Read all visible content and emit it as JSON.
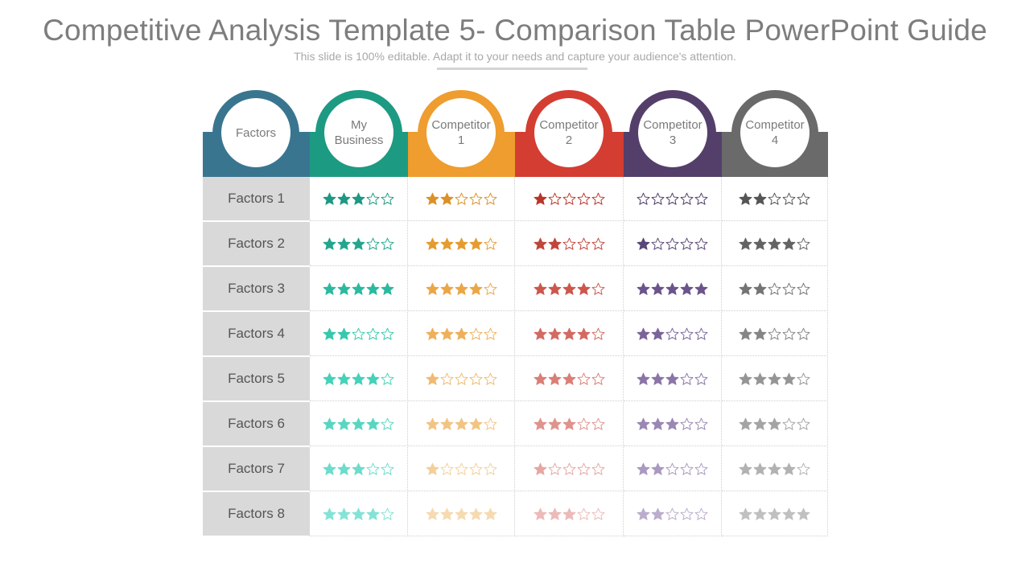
{
  "title": "Competitive Analysis Template 5- Comparison Table PowerPoint Guide",
  "subtitle": "This slide is 100% editable. Adapt it to your needs and capture your audience's attention.",
  "columns": [
    {
      "header": "Factors",
      "color": "#3a7590"
    },
    {
      "header": "My\nBusiness",
      "color": "#1d9a82"
    },
    {
      "header": "Competitor\n1",
      "color": "#ee9d2e"
    },
    {
      "header": "Competitor\n2",
      "color": "#d43d32"
    },
    {
      "header": "Competitor\n3",
      "color": "#533f6a"
    },
    {
      "header": "Competitor\n4",
      "color": "#6a6a6a"
    }
  ],
  "row_labels": [
    "Factors 1",
    "Factors 2",
    "Factors 3",
    "Factors 4",
    "Factors 5",
    "Factors 6",
    "Factors 7",
    "Factors 8"
  ],
  "max_stars": 5,
  "ratings": {
    "my_business": [
      3,
      3,
      5,
      2,
      4,
      4,
      3,
      4
    ],
    "competitor_1": [
      2,
      4,
      4,
      3,
      1,
      4,
      1,
      5
    ],
    "competitor_2": [
      1,
      2,
      4,
      4,
      3,
      3,
      1,
      3
    ],
    "competitor_3": [
      0,
      1,
      5,
      2,
      3,
      3,
      2,
      2
    ],
    "competitor_4": [
      2,
      4,
      2,
      2,
      4,
      3,
      4,
      5
    ]
  },
  "star_palettes": {
    "my_business": [
      "#1e9882",
      "#23a58e",
      "#2bb9a0",
      "#37c8ae",
      "#46d1b9",
      "#58d6c1",
      "#6cdccb",
      "#84e3d6"
    ],
    "competitor_1": [
      "#dc9126",
      "#e49c30",
      "#eba646",
      "#eeb05b",
      "#f0ba70",
      "#f2c483",
      "#f4cf99",
      "#f6dab0"
    ],
    "competitor_2": [
      "#b83628",
      "#c1453a",
      "#cc574d",
      "#d36a62",
      "#da7e78",
      "#e0928d",
      "#e6a6a2",
      "#ecbab7"
    ],
    "competitor_3": [
      "#4c3b66",
      "#5a4678",
      "#6a548b",
      "#7a6499",
      "#8a75a6",
      "#9a87b3",
      "#aa99c0",
      "#bcadcc"
    ],
    "competitor_4": [
      "#555555",
      "#636363",
      "#747474",
      "#858585",
      "#959595",
      "#a4a4a4",
      "#b2b2b2",
      "#c0c0c0"
    ]
  }
}
